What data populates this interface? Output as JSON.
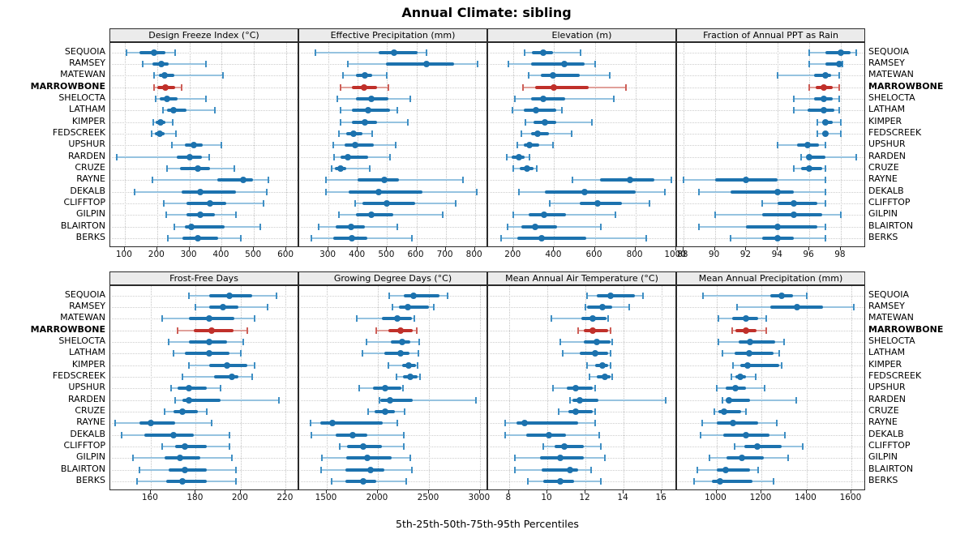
{
  "chart_data": {
    "type": "dotplot-interval",
    "title": "Annual Climate: sibling",
    "caption": "5th-25th-50th-75th-95th Percentiles",
    "percentile_labels": [
      "5th",
      "25th",
      "50th",
      "75th",
      "95th"
    ],
    "layout": {
      "rows": 2,
      "cols": 4,
      "grid": "on",
      "legend": "none"
    },
    "sites": [
      "SEQUOIA",
      "RAMSEY",
      "MATEWAN",
      "MARROWBONE",
      "SHELOCTA",
      "LATHAM",
      "KIMPER",
      "FEDSCREEK",
      "UPSHUR",
      "RARDEN",
      "CRUZE",
      "RAYNE",
      "DEKALB",
      "CLIFFTOP",
      "GILPIN",
      "BLAIRTON",
      "BERKS"
    ],
    "highlight_site": "MARROWBONE",
    "colors": {
      "point": "#1c72ae",
      "interval": "#96c3e0",
      "cap": "#3f8fc4",
      "highlight_point": "#c0302a",
      "highlight_interval": "#e0a09a",
      "highlight_cap": "#cd5f58",
      "grid": "#c4c4c4",
      "header_bg": "#ebebeb",
      "border": "#2a2a2a"
    },
    "panels": [
      {
        "title": "Design Freeze Index (°C)",
        "xlim": [
          55,
          640
        ],
        "ticks": [
          100,
          200,
          300,
          400,
          500,
          600
        ],
        "values": [
          [
            105,
            145,
            190,
            225,
            255
          ],
          [
            155,
            185,
            212,
            235,
            350
          ],
          [
            190,
            205,
            223,
            253,
            405
          ],
          [
            190,
            200,
            225,
            255,
            275
          ],
          [
            195,
            207,
            230,
            263,
            350
          ],
          [
            218,
            230,
            250,
            290,
            378
          ],
          [
            188,
            196,
            210,
            226,
            247
          ],
          [
            183,
            192,
            207,
            223,
            258
          ],
          [
            245,
            285,
            313,
            342,
            400
          ],
          [
            75,
            260,
            300,
            340,
            360
          ],
          [
            230,
            270,
            325,
            365,
            440
          ],
          [
            185,
            386,
            467,
            497,
            545
          ],
          [
            130,
            275,
            333,
            445,
            540
          ],
          [
            220,
            292,
            363,
            415,
            530
          ],
          [
            228,
            292,
            333,
            380,
            445
          ],
          [
            254,
            286,
            307,
            410,
            520
          ],
          [
            232,
            278,
            325,
            390,
            460
          ]
        ]
      },
      {
        "title": "Effective Precipitation (mm)",
        "xlim": [
          200,
          845
        ],
        "ticks": [
          300,
          400,
          500,
          600,
          700,
          800
        ],
        "values": [
          [
            255,
            470,
            525,
            605,
            635
          ],
          [
            365,
            495,
            635,
            730,
            810
          ],
          [
            350,
            395,
            425,
            450,
            500
          ],
          [
            340,
            380,
            420,
            465,
            505
          ],
          [
            330,
            395,
            445,
            505,
            580
          ],
          [
            340,
            380,
            435,
            510,
            535
          ],
          [
            340,
            380,
            425,
            465,
            570
          ],
          [
            335,
            360,
            385,
            415,
            450
          ],
          [
            315,
            355,
            390,
            455,
            530
          ],
          [
            320,
            340,
            365,
            435,
            510
          ],
          [
            310,
            322,
            340,
            360,
            440
          ],
          [
            290,
            400,
            490,
            540,
            760
          ],
          [
            290,
            370,
            470,
            620,
            805
          ],
          [
            390,
            415,
            500,
            595,
            735
          ],
          [
            335,
            395,
            445,
            520,
            690
          ],
          [
            265,
            325,
            378,
            423,
            535
          ],
          [
            242,
            316,
            380,
            434,
            585
          ]
        ]
      },
      {
        "title": "Elevation (m)",
        "xlim": [
          75,
          1005
        ],
        "ticks": [
          200,
          400,
          600,
          800,
          1000
        ],
        "values": [
          [
            255,
            290,
            345,
            395,
            530
          ],
          [
            175,
            285,
            450,
            550,
            600
          ],
          [
            275,
            335,
            395,
            525,
            675
          ],
          [
            245,
            305,
            400,
            570,
            755
          ],
          [
            205,
            285,
            345,
            455,
            695
          ],
          [
            195,
            250,
            310,
            410,
            440
          ],
          [
            260,
            300,
            353,
            410,
            585
          ],
          [
            240,
            285,
            320,
            375,
            485
          ],
          [
            220,
            250,
            280,
            325,
            395
          ],
          [
            165,
            190,
            228,
            255,
            280
          ],
          [
            200,
            232,
            267,
            300,
            315
          ],
          [
            490,
            625,
            775,
            895,
            975
          ],
          [
            225,
            355,
            550,
            800,
            945
          ],
          [
            380,
            525,
            615,
            735,
            870
          ],
          [
            200,
            275,
            350,
            460,
            700
          ],
          [
            170,
            240,
            305,
            415,
            630
          ],
          [
            140,
            220,
            340,
            560,
            855
          ]
        ]
      },
      {
        "title": "Fraction of Annual PPT as Rain",
        "xlim": [
          87.6,
          99.6
        ],
        "ticks": [
          88,
          90,
          92,
          94,
          96,
          98
        ],
        "values": [
          [
            96,
            97,
            98,
            98.6,
            99
          ],
          [
            96,
            97,
            97.9,
            98,
            98.1
          ],
          [
            94,
            96.3,
            97,
            97.4,
            97.9
          ],
          [
            96,
            96.4,
            96.9,
            97.5,
            97.9
          ],
          [
            95,
            96.3,
            96.9,
            97.5,
            97.9
          ],
          [
            95,
            95.9,
            96.9,
            97.6,
            97.9
          ],
          [
            96.5,
            96.8,
            97,
            97.5,
            98
          ],
          [
            96.5,
            96.8,
            97,
            97.2,
            98
          ],
          [
            94,
            95.2,
            95.9,
            96.6,
            97
          ],
          [
            95.5,
            95.9,
            96,
            97,
            99
          ],
          [
            95,
            95.5,
            96,
            96.8,
            97
          ],
          [
            88,
            90,
            92,
            94,
            97
          ],
          [
            89,
            91,
            94,
            95,
            97
          ],
          [
            93,
            94,
            95,
            96.5,
            97
          ],
          [
            90,
            93,
            95,
            96.8,
            98
          ],
          [
            89,
            92,
            94,
            96.5,
            97
          ],
          [
            91,
            93,
            94,
            95,
            97
          ]
        ]
      },
      {
        "title": "Frost-Free Days",
        "xlim": [
          142,
          226
        ],
        "ticks": [
          160,
          180,
          200,
          220
        ],
        "values": [
          [
            177,
            186,
            195,
            205,
            216
          ],
          [
            180,
            186,
            192,
            199,
            212
          ],
          [
            165,
            177,
            186,
            197,
            206
          ],
          [
            172,
            179,
            187,
            197,
            203
          ],
          [
            168,
            177,
            186,
            194,
            201
          ],
          [
            170,
            175,
            186,
            195,
            200
          ],
          [
            177,
            186,
            194,
            203,
            206
          ],
          [
            174,
            188,
            196,
            199,
            205
          ],
          [
            169,
            172,
            177,
            185,
            191
          ],
          [
            171,
            174,
            177,
            191,
            217
          ],
          [
            166,
            170,
            174,
            181,
            185
          ],
          [
            144,
            155,
            160,
            171,
            187
          ],
          [
            147,
            157,
            170,
            179,
            195
          ],
          [
            165,
            171,
            175,
            185,
            195
          ],
          [
            152,
            166,
            173,
            182,
            196
          ],
          [
            155,
            168,
            175,
            185,
            198
          ],
          [
            154,
            167,
            174,
            185,
            198
          ]
        ]
      },
      {
        "title": "Growing Degree Days (°C)",
        "xlim": [
          1230,
          3080
        ],
        "ticks": [
          1500,
          2000,
          2500,
          3000
        ],
        "values": [
          [
            2110,
            2255,
            2350,
            2600,
            2680
          ],
          [
            2145,
            2205,
            2290,
            2500,
            2545
          ],
          [
            1790,
            2040,
            2190,
            2335,
            2360
          ],
          [
            1980,
            2105,
            2220,
            2345,
            2380
          ],
          [
            1885,
            2130,
            2240,
            2320,
            2405
          ],
          [
            1850,
            2065,
            2225,
            2310,
            2400
          ],
          [
            2105,
            2235,
            2300,
            2370,
            2390
          ],
          [
            2185,
            2245,
            2320,
            2390,
            2410
          ],
          [
            1820,
            1955,
            2070,
            2230,
            2245
          ],
          [
            2015,
            2025,
            2120,
            2345,
            2960
          ],
          [
            1905,
            1965,
            2070,
            2170,
            2265
          ],
          [
            1340,
            1435,
            1555,
            2045,
            2190
          ],
          [
            1345,
            1590,
            1755,
            1895,
            2255
          ],
          [
            1630,
            1700,
            1855,
            2040,
            2255
          ],
          [
            1455,
            1690,
            1895,
            2135,
            2320
          ],
          [
            1445,
            1685,
            1930,
            2065,
            2335
          ],
          [
            1550,
            1685,
            1860,
            1985,
            2280
          ]
        ]
      },
      {
        "title": "Mean Annual Air Temperature (°C)",
        "xlim": [
          6.9,
          16.8
        ],
        "ticks": [
          8,
          10,
          12,
          14,
          16
        ],
        "values": [
          [
            12.1,
            12.6,
            13.3,
            14.6,
            15.0
          ],
          [
            12.0,
            12.1,
            12.9,
            13.4,
            14.3
          ],
          [
            10.2,
            11.8,
            12.4,
            13.1,
            13.2
          ],
          [
            11.6,
            11.9,
            12.4,
            13.2,
            13.3
          ],
          [
            10.7,
            11.9,
            12.6,
            13.3,
            13.4
          ],
          [
            10.8,
            11.7,
            12.5,
            13.2,
            13.3
          ],
          [
            12.1,
            12.5,
            12.9,
            13.2,
            13.3
          ],
          [
            12.2,
            12.6,
            13.0,
            13.3,
            13.4
          ],
          [
            10.3,
            11.0,
            11.5,
            12.4,
            12.5
          ],
          [
            11.2,
            11.3,
            11.7,
            12.7,
            16.2
          ],
          [
            10.6,
            11.1,
            11.5,
            12.4,
            12.5
          ],
          [
            7.8,
            8.4,
            8.8,
            11.6,
            12.5
          ],
          [
            7.8,
            8.9,
            10.1,
            11.0,
            12.7
          ],
          [
            9.8,
            10.4,
            10.9,
            11.9,
            12.8
          ],
          [
            8.3,
            9.6,
            10.7,
            11.9,
            13.0
          ],
          [
            8.3,
            9.7,
            11.2,
            11.6,
            12.3
          ],
          [
            9.0,
            9.8,
            10.7,
            11.4,
            12.8
          ]
        ]
      },
      {
        "title": "Mean Annual Precipitation (mm)",
        "xlim": [
          825,
          1665
        ],
        "ticks": [
          1000,
          1200,
          1400,
          1600
        ],
        "values": [
          [
            940,
            1240,
            1290,
            1340,
            1400
          ],
          [
            1090,
            1240,
            1360,
            1475,
            1610
          ],
          [
            1010,
            1070,
            1130,
            1185,
            1220
          ],
          [
            1070,
            1085,
            1130,
            1180,
            1220
          ],
          [
            1010,
            1100,
            1150,
            1260,
            1300
          ],
          [
            1025,
            1080,
            1145,
            1255,
            1280
          ],
          [
            1075,
            1105,
            1140,
            1280,
            1290
          ],
          [
            1065,
            1085,
            1107,
            1132,
            1175
          ],
          [
            1000,
            1040,
            1085,
            1130,
            1215
          ],
          [
            1025,
            1040,
            1055,
            1150,
            1355
          ],
          [
            990,
            1010,
            1035,
            1110,
            1130
          ],
          [
            935,
            1000,
            1075,
            1185,
            1270
          ],
          [
            930,
            1030,
            1130,
            1235,
            1305
          ],
          [
            1080,
            1125,
            1180,
            1290,
            1385
          ],
          [
            970,
            1045,
            1115,
            1210,
            1320
          ],
          [
            915,
            1000,
            1040,
            1150,
            1185
          ],
          [
            900,
            980,
            1017,
            1160,
            1255
          ]
        ]
      }
    ]
  }
}
